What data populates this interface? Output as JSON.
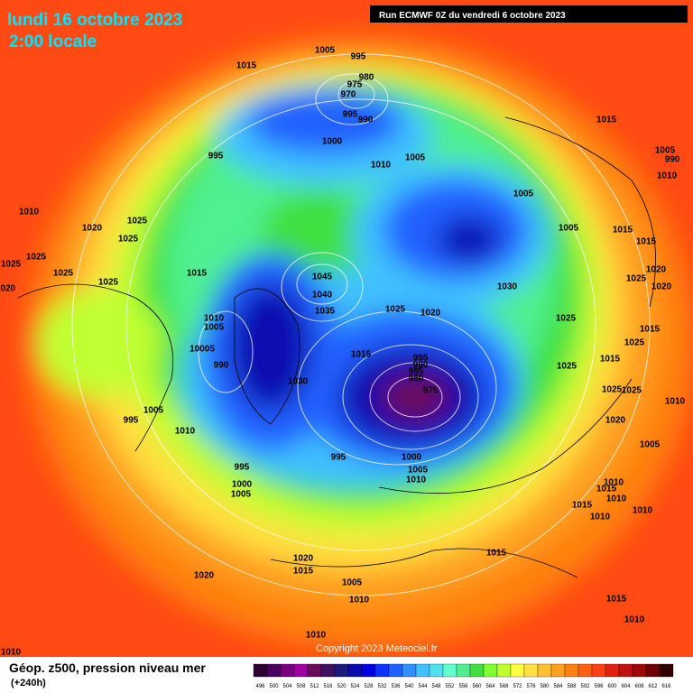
{
  "header": {
    "date": "lundi 16 octobre 2023",
    "time": "2:00 locale",
    "run": "Run ECMWF 0Z du vendredi 6 octobre 2023"
  },
  "copyright": "Copyright 2023 Meteociel.fr",
  "footer": {
    "title": "Géop. z500, pression niveau mer",
    "lead": "(+240h)"
  },
  "legend": {
    "values": [
      496,
      500,
      504,
      508,
      512,
      516,
      520,
      524,
      528,
      532,
      536,
      540,
      544,
      548,
      552,
      556,
      560,
      564,
      568,
      572,
      576,
      580,
      584,
      588,
      592,
      596,
      600,
      604,
      608,
      612,
      616
    ],
    "colors": [
      "#2b0030",
      "#4b0060",
      "#7a0080",
      "#a000a0",
      "#6a0a5a",
      "#401060",
      "#1a1a7a",
      "#0a0ab0",
      "#0000e0",
      "#1030ff",
      "#2060ff",
      "#3090ff",
      "#40c0ff",
      "#50e0f0",
      "#60ffd0",
      "#50f090",
      "#40e040",
      "#80ff30",
      "#c0ff30",
      "#ffff40",
      "#ffe040",
      "#ffc030",
      "#ffa020",
      "#ff8010",
      "#ff6010",
      "#ff4010",
      "#e02010",
      "#c01010",
      "#a00808",
      "#700000",
      "#300000"
    ]
  },
  "isobar_labels": [
    1005,
    995,
    1015,
    980,
    975,
    970,
    995,
    990,
    1000,
    995,
    1010,
    1005,
    1015,
    1005,
    990,
    1010,
    1010,
    1025,
    1020,
    1025,
    1005,
    1005,
    1015,
    1015,
    1025,
    1025,
    1025,
    1015,
    1025,
    1045,
    1020,
    1025,
    1020,
    1030,
    1020,
    1040,
    1035,
    1025,
    1020,
    1010,
    1005,
    1025,
    1015,
    10005,
    1025,
    1015,
    995,
    990,
    985,
    980,
    990,
    975,
    1030,
    1025,
    1015,
    1025,
    1025,
    1010,
    1005,
    995,
    1020,
    1010,
    995,
    1000,
    1005,
    1005,
    995,
    1010,
    1000,
    1005,
    1010,
    1015,
    1010,
    1015,
    1010,
    1010,
    1015,
    1020,
    1015,
    1020,
    1005,
    1010,
    1015,
    1010,
    1010,
    1010
  ]
}
